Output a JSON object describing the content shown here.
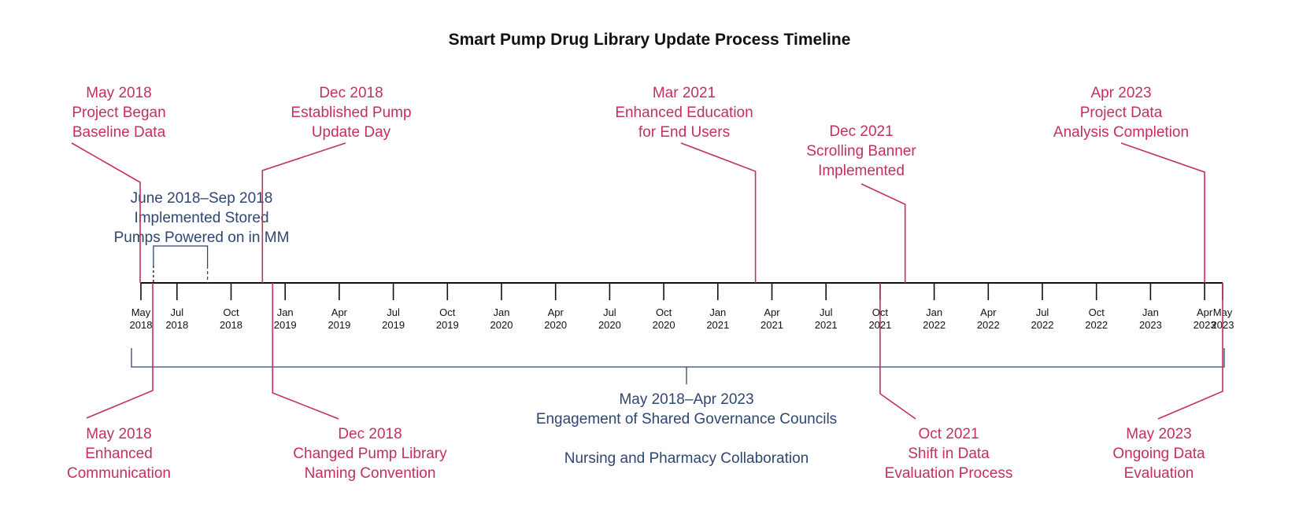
{
  "title": "Smart Pump Drug Library Update Process Timeline",
  "colors": {
    "event": "#c3305a",
    "span": "#2f4673",
    "axis": "#111111"
  },
  "axis": {
    "start": "2018-05",
    "end": "2023-05",
    "ticks": [
      {
        "date": "2018-05",
        "month": "May",
        "year": "2018"
      },
      {
        "date": "2018-07",
        "month": "Jul",
        "year": "2018"
      },
      {
        "date": "2018-10",
        "month": "Oct",
        "year": "2018"
      },
      {
        "date": "2019-01",
        "month": "Jan",
        "year": "2019"
      },
      {
        "date": "2019-04",
        "month": "Apr",
        "year": "2019"
      },
      {
        "date": "2019-07",
        "month": "Jul",
        "year": "2019"
      },
      {
        "date": "2019-10",
        "month": "Oct",
        "year": "2019"
      },
      {
        "date": "2020-01",
        "month": "Jan",
        "year": "2020"
      },
      {
        "date": "2020-04",
        "month": "Apr",
        "year": "2020"
      },
      {
        "date": "2020-07",
        "month": "Jul",
        "year": "2020"
      },
      {
        "date": "2020-10",
        "month": "Oct",
        "year": "2020"
      },
      {
        "date": "2021-01",
        "month": "Jan",
        "year": "2021"
      },
      {
        "date": "2021-04",
        "month": "Apr",
        "year": "2021"
      },
      {
        "date": "2021-07",
        "month": "Jul",
        "year": "2021"
      },
      {
        "date": "2021-10",
        "month": "Oct",
        "year": "2021"
      },
      {
        "date": "2022-01",
        "month": "Jan",
        "year": "2022"
      },
      {
        "date": "2022-04",
        "month": "Apr",
        "year": "2022"
      },
      {
        "date": "2022-07",
        "month": "Jul",
        "year": "2022"
      },
      {
        "date": "2022-10",
        "month": "Oct",
        "year": "2022"
      },
      {
        "date": "2023-01",
        "month": "Jan",
        "year": "2023"
      },
      {
        "date": "2023-04",
        "month": "Apr",
        "year": "2023"
      },
      {
        "date": "2023-05",
        "month": "May",
        "year": "2023"
      }
    ]
  },
  "events_above": [
    {
      "id": "project-began",
      "date": "2018-05",
      "lines": [
        "May 2018",
        "Project Began",
        "Baseline Data"
      ]
    },
    {
      "id": "pump-update-day",
      "date": "2018-12",
      "lines": [
        "Dec 2018",
        "Established Pump",
        "Update Day"
      ]
    },
    {
      "id": "enhanced-education",
      "date": "2021-03",
      "lines": [
        "Mar 2021",
        "Enhanced Education",
        "for End Users"
      ]
    },
    {
      "id": "scrolling-banner",
      "date": "2021-12",
      "lines": [
        "Dec 2021",
        "Scrolling Banner",
        "Implemented"
      ]
    },
    {
      "id": "data-analysis-completion",
      "date": "2023-04",
      "lines": [
        "Apr 2023",
        "Project Data",
        "Analysis Completion"
      ]
    }
  ],
  "events_below": [
    {
      "id": "enhanced-communication",
      "date": "2018-05",
      "lines": [
        "May 2018",
        "Enhanced",
        "Communication"
      ]
    },
    {
      "id": "naming-convention",
      "date": "2018-12",
      "lines": [
        "Dec 2018",
        "Changed Pump Library",
        "Naming Convention"
      ]
    },
    {
      "id": "data-evaluation-shift",
      "date": "2021-10",
      "lines": [
        "Oct 2021",
        "Shift in Data",
        "Evaluation Process"
      ]
    },
    {
      "id": "ongoing-evaluation",
      "date": "2023-05",
      "lines": [
        "May 2023",
        "Ongoing Data",
        "Evaluation"
      ]
    }
  ],
  "spans": [
    {
      "id": "stored-pumps",
      "start": "2018-06",
      "end": "2018-09",
      "lines": [
        "June 2018–Sep 2018",
        "Implemented Stored",
        "Pumps Powered on in MM"
      ]
    },
    {
      "id": "shared-governance",
      "start": "2018-05",
      "end": "2023-04",
      "lines": [
        "May 2018–Apr 2023",
        "Engagement of Shared Governance Councils",
        "",
        "Nursing and Pharmacy Collaboration"
      ]
    }
  ]
}
